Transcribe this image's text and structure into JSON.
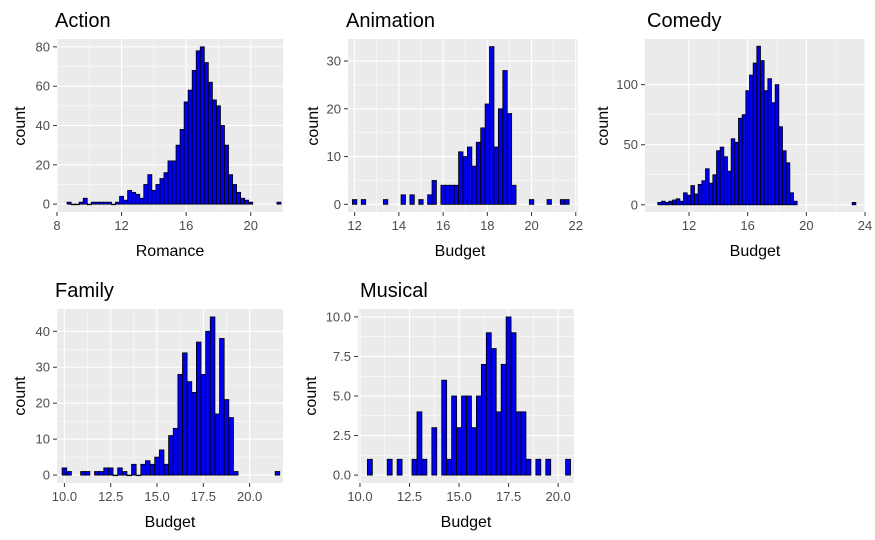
{
  "chart_data": [
    {
      "type": "bar",
      "title": "Action",
      "xlabel": "Romance",
      "ylabel": "count",
      "xlim": [
        8.0,
        22.0
      ],
      "ylim": [
        -4,
        84
      ],
      "x_ticks": [
        8,
        12,
        16,
        20
      ],
      "y_ticks": [
        0,
        20,
        40,
        60,
        80
      ],
      "x_tick_labels": [
        "8",
        "12",
        "16",
        "20"
      ],
      "y_tick_labels": [
        "0",
        "20",
        "40",
        "60",
        "80"
      ],
      "bin_width": 0.25,
      "x": [
        8.75,
        9.0,
        9.25,
        9.5,
        9.75,
        10.0,
        10.25,
        10.5,
        10.75,
        11.0,
        11.25,
        11.5,
        11.75,
        12.0,
        12.25,
        12.5,
        12.75,
        13.0,
        13.25,
        13.5,
        13.75,
        14.0,
        14.25,
        14.5,
        14.75,
        15.0,
        15.25,
        15.5,
        15.75,
        16.0,
        16.25,
        16.5,
        16.75,
        17.0,
        17.25,
        17.5,
        17.75,
        18.0,
        18.25,
        18.5,
        18.75,
        19.0,
        19.25,
        19.5,
        19.75,
        20.0,
        21.75
      ],
      "values": [
        1,
        0,
        0,
        1,
        3,
        0,
        1,
        1,
        1,
        1,
        1,
        0,
        1,
        4,
        2,
        7,
        6,
        5,
        3,
        10,
        15,
        7,
        10,
        13,
        16,
        22,
        22,
        30,
        38,
        52,
        58,
        68,
        78,
        80,
        72,
        62,
        53,
        50,
        40,
        30,
        15,
        10,
        6,
        3,
        2,
        1,
        1
      ],
      "colors": {
        "bar_fill": "#0000ee",
        "bar_outline": "#000000"
      }
    },
    {
      "type": "bar",
      "title": "Animation",
      "xlabel": "Budget",
      "ylabel": "count",
      "xlim": [
        11.7,
        22.1
      ],
      "ylim": [
        -1.6,
        34.6
      ],
      "x_ticks": [
        12,
        14,
        16,
        18,
        20,
        22
      ],
      "y_ticks": [
        0,
        10,
        20,
        30
      ],
      "x_tick_labels": [
        "12",
        "14",
        "16",
        "18",
        "20",
        "22"
      ],
      "y_tick_labels": [
        "0",
        "10",
        "20",
        "30"
      ],
      "bin_width": 0.2,
      "x": [
        12.0,
        12.4,
        13.4,
        14.2,
        14.6,
        15.0,
        15.4,
        15.6,
        16.0,
        16.2,
        16.4,
        16.6,
        16.8,
        17.0,
        17.2,
        17.4,
        17.6,
        17.8,
        18.0,
        18.2,
        18.4,
        18.6,
        18.8,
        19.0,
        19.2,
        20.0,
        20.8,
        21.4,
        21.6
      ],
      "values": [
        1,
        1,
        1,
        2,
        2,
        1,
        2,
        5,
        4,
        4,
        4,
        4,
        11,
        10,
        12,
        8,
        13,
        16,
        21,
        33,
        12,
        20,
        28,
        19,
        4,
        1,
        1,
        1,
        1
      ],
      "colors": {
        "bar_fill": "#0000ee",
        "bar_outline": "#000000"
      }
    },
    {
      "type": "bar",
      "title": "Comedy",
      "xlabel": "Budget",
      "ylabel": "count",
      "xlim": [
        9.0,
        24.0
      ],
      "ylim": [
        -6,
        138
      ],
      "x_ticks": [
        12,
        16,
        20,
        24
      ],
      "y_ticks": [
        0,
        50,
        100
      ],
      "x_tick_labels": [
        "12",
        "16",
        "20",
        "24"
      ],
      "y_tick_labels": [
        "0",
        "50",
        "100"
      ],
      "bin_width": 0.25,
      "x": [
        10.0,
        10.25,
        10.5,
        10.75,
        11.0,
        11.25,
        11.5,
        11.75,
        12.0,
        12.25,
        12.5,
        12.75,
        13.0,
        13.25,
        13.5,
        13.75,
        14.0,
        14.25,
        14.5,
        14.75,
        15.0,
        15.25,
        15.5,
        15.75,
        16.0,
        16.25,
        16.5,
        16.75,
        17.0,
        17.25,
        17.5,
        17.75,
        18.0,
        18.25,
        18.5,
        18.75,
        19.0,
        19.25,
        23.25
      ],
      "values": [
        2,
        3,
        2,
        3,
        4,
        5,
        3,
        10,
        8,
        16,
        9,
        17,
        20,
        30,
        18,
        25,
        45,
        48,
        40,
        28,
        55,
        52,
        72,
        75,
        95,
        108,
        118,
        132,
        120,
        95,
        105,
        85,
        100,
        65,
        45,
        35,
        10,
        3,
        2
      ],
      "colors": {
        "bar_fill": "#0000ee",
        "bar_outline": "#000000"
      }
    },
    {
      "type": "bar",
      "title": "Family",
      "xlabel": "Budget",
      "ylabel": "count",
      "xlim": [
        9.6,
        21.8
      ],
      "ylim": [
        -2.2,
        46.2
      ],
      "x_ticks": [
        10.0,
        12.5,
        15.0,
        17.5,
        20.0
      ],
      "y_ticks": [
        0,
        10,
        20,
        30,
        40
      ],
      "x_tick_labels": [
        "10.0",
        "12.5",
        "15.0",
        "17.5",
        "20.0"
      ],
      "y_tick_labels": [
        "0",
        "10",
        "20",
        "30",
        "40"
      ],
      "bin_width": 0.25,
      "x": [
        10.0,
        10.25,
        11.0,
        11.25,
        11.75,
        12.0,
        12.25,
        12.5,
        12.75,
        13.0,
        13.25,
        13.5,
        13.75,
        14.0,
        14.25,
        14.5,
        14.75,
        15.0,
        15.25,
        15.5,
        15.75,
        16.0,
        16.25,
        16.5,
        16.75,
        17.0,
        17.25,
        17.5,
        17.75,
        18.0,
        18.25,
        18.5,
        18.75,
        19.0,
        19.25,
        21.5
      ],
      "values": [
        2,
        1,
        1,
        1,
        1,
        1,
        2,
        2,
        0,
        2,
        1,
        0,
        3,
        0,
        3,
        4,
        3,
        5,
        7,
        3,
        11,
        13,
        28,
        34,
        26,
        23,
        37,
        28,
        40,
        44,
        17,
        38,
        21,
        16,
        1,
        1
      ],
      "colors": {
        "bar_fill": "#0000ee",
        "bar_outline": "#000000"
      }
    },
    {
      "type": "bar",
      "title": "Musical",
      "xlabel": "Budget",
      "ylabel": "count",
      "xlim": [
        9.9,
        20.8
      ],
      "ylim": [
        -0.5,
        10.5
      ],
      "x_ticks": [
        10.0,
        12.5,
        15.0,
        17.5,
        20.0
      ],
      "y_ticks": [
        0.0,
        2.5,
        5.0,
        7.5,
        10.0
      ],
      "x_tick_labels": [
        "10.0",
        "12.5",
        "15.0",
        "17.5",
        "20.0"
      ],
      "y_tick_labels": [
        "0.0",
        "2.5",
        "5.0",
        "7.5",
        "10.0"
      ],
      "bin_width": 0.25,
      "x": [
        10.5,
        11.5,
        12.0,
        12.75,
        13.0,
        13.25,
        13.75,
        14.25,
        14.5,
        14.75,
        15.0,
        15.25,
        15.5,
        15.75,
        16.0,
        16.25,
        16.5,
        16.75,
        17.0,
        17.25,
        17.5,
        17.75,
        18.0,
        18.25,
        18.5,
        19.0,
        19.5,
        20.5
      ],
      "values": [
        1,
        1,
        1,
        1,
        4,
        1,
        3,
        6,
        1,
        5,
        3,
        5,
        5,
        3,
        5,
        7,
        9,
        8,
        4,
        7,
        10,
        9,
        4,
        4,
        1,
        1,
        1,
        1
      ],
      "colors": {
        "bar_fill": "#0000ee",
        "bar_outline": "#000000"
      }
    }
  ]
}
